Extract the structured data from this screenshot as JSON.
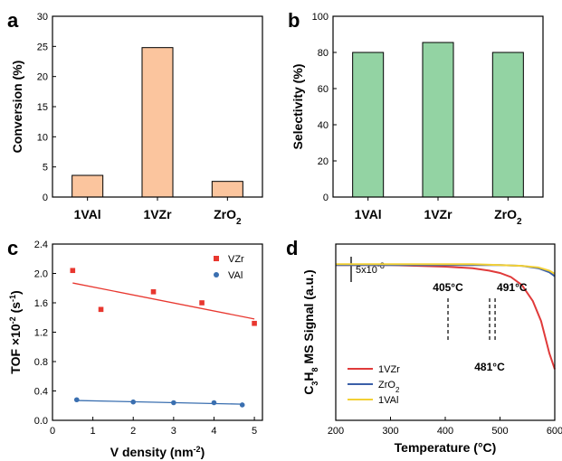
{
  "chart_data": [
    {
      "panel": "a",
      "type": "bar",
      "categories": [
        "1VAl",
        "1VZr",
        "ZrO2"
      ],
      "values": [
        3.6,
        24.8,
        2.6
      ],
      "ylabel": "Conversion (%)",
      "ylim": [
        0,
        30
      ],
      "yticks": [
        "0",
        "5",
        "10",
        "15",
        "20",
        "25",
        "30"
      ],
      "bar_color": "#FBC59E"
    },
    {
      "panel": "b",
      "type": "bar",
      "categories": [
        "1VAl",
        "1VZr",
        "ZrO2"
      ],
      "values": [
        80,
        85.5,
        80
      ],
      "ylabel": "Selectivity (%)",
      "ylim": [
        0,
        100
      ],
      "yticks": [
        "0",
        "20",
        "40",
        "60",
        "80",
        "100"
      ],
      "bar_color": "#93D3A3"
    },
    {
      "panel": "c",
      "type": "scatter",
      "xlabel": "V density (nm",
      "xlabel_sup": "-2",
      "ylabel": "TOF ×10",
      "ylabel_sup": "-2",
      "ylabel_unit": " (s",
      "ylabel_unit_sup": "-1",
      "xlim": [
        0,
        5.2
      ],
      "ylim": [
        0,
        2.4
      ],
      "xticks": [
        "0",
        "1",
        "2",
        "3",
        "4",
        "5"
      ],
      "yticks": [
        "0.0",
        "0.4",
        "0.8",
        "1.2",
        "1.6",
        "2.0",
        "2.4"
      ],
      "legend_position": "top-right",
      "series": [
        {
          "name": "VZr",
          "color": "#E8372F",
          "marker": "square",
          "x": [
            0.5,
            1.2,
            2.5,
            3.7,
            5.0
          ],
          "y": [
            2.04,
            1.51,
            1.75,
            1.6,
            1.32
          ],
          "fit": [
            [
              0.5,
              1.87
            ],
            [
              5.0,
              1.38
            ]
          ]
        },
        {
          "name": "VAl",
          "color": "#3A6FB0",
          "marker": "circle",
          "x": [
            0.6,
            2.0,
            3.0,
            4.0,
            4.7
          ],
          "y": [
            0.28,
            0.25,
            0.24,
            0.24,
            0.21
          ],
          "fit": [
            [
              0.6,
              0.27
            ],
            [
              4.7,
              0.22
            ]
          ]
        }
      ]
    },
    {
      "panel": "d",
      "type": "line",
      "xlabel": "Temperature (°C)",
      "ylabel": "C3H8 MS Signal (a.u.)",
      "xlim": [
        200,
        600
      ],
      "xticks": [
        "200",
        "300",
        "400",
        "500",
        "600"
      ],
      "scale_bar": "5x10",
      "scale_bar_sup": "-8",
      "legend_position": "bottom-left",
      "annotations": [
        {
          "label": "405°C",
          "x": 405
        },
        {
          "label": "481°C",
          "x": 481
        },
        {
          "label": "491°C",
          "x": 491
        }
      ],
      "series": [
        {
          "name": "1VZr",
          "color": "#E03A3A",
          "x": [
            200,
            300,
            400,
            450,
            480,
            500,
            520,
            540,
            560,
            575,
            590,
            600
          ],
          "y": [
            0,
            0,
            -0.02,
            -0.04,
            -0.07,
            -0.1,
            -0.15,
            -0.25,
            -0.45,
            -0.7,
            -1.1,
            -1.3
          ]
        },
        {
          "name": "ZrO2",
          "color": "#3A5FA8",
          "x": [
            200,
            300,
            400,
            450,
            500,
            540,
            570,
            590,
            600
          ],
          "y": [
            0,
            0,
            0,
            0,
            0,
            -0.01,
            -0.04,
            -0.09,
            -0.14
          ]
        },
        {
          "name": "1VAl",
          "color": "#F3D035",
          "x": [
            200,
            300,
            400,
            450,
            500,
            540,
            570,
            590,
            600
          ],
          "y": [
            0.01,
            0.01,
            0.01,
            0.01,
            0.0,
            -0.01,
            -0.03,
            -0.07,
            -0.11
          ]
        }
      ]
    }
  ]
}
